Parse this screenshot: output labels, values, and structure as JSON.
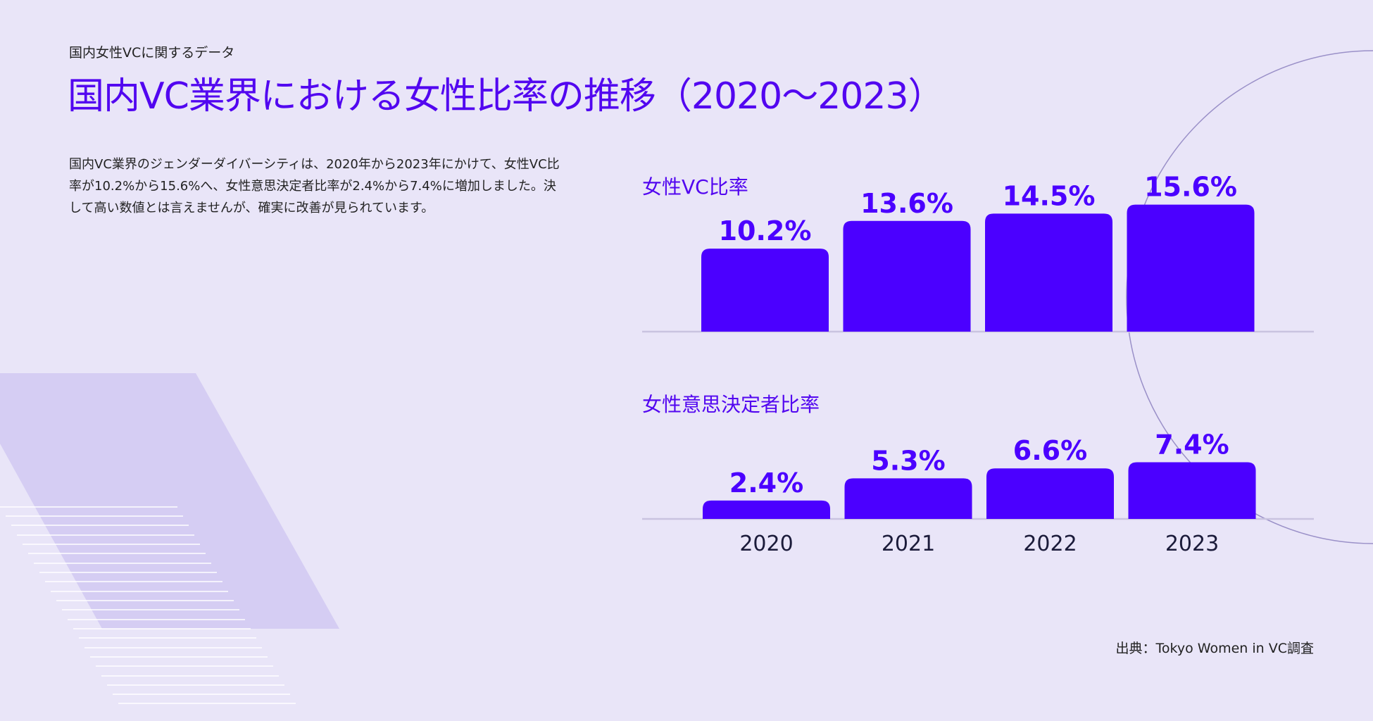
{
  "header": {
    "kicker": "国内女性VCに関するデータ",
    "title": "国内VC業界における女性比率の推移（2020〜2023）"
  },
  "description": "国内VC業界のジェンダーダイバーシティは、2020年から2023年にかけて、女性VC比率が10.2%から15.6%へ、女性意思決定者比率が2.4%から7.4%に増加しました。決して高い数値とは言えませんが、確実に改善が見られています。",
  "source": "出典：Tokyo Women in VC調査",
  "colors": {
    "accent": "#5206f0",
    "bar": "#4b00ff",
    "background": "#e9e5f8",
    "baseline": "#c9c3e0",
    "decoration": "#d5cdf3"
  },
  "chart_data": [
    {
      "type": "bar",
      "title": "女性VC比率",
      "categories": [
        "2020",
        "2021",
        "2022",
        "2023"
      ],
      "values": [
        10.2,
        13.6,
        14.5,
        15.6
      ],
      "value_labels": [
        "10.2%",
        "13.6%",
        "14.5%",
        "15.6%"
      ],
      "unit": "%",
      "ylim": [
        0,
        16
      ]
    },
    {
      "type": "bar",
      "title": "女性意思決定者比率",
      "categories": [
        "2020",
        "2021",
        "2022",
        "2023"
      ],
      "values": [
        2.4,
        5.3,
        6.6,
        7.4
      ],
      "value_labels": [
        "2.4%",
        "5.3%",
        "6.6%",
        "7.4%"
      ],
      "unit": "%",
      "ylim": [
        0,
        8
      ]
    }
  ]
}
